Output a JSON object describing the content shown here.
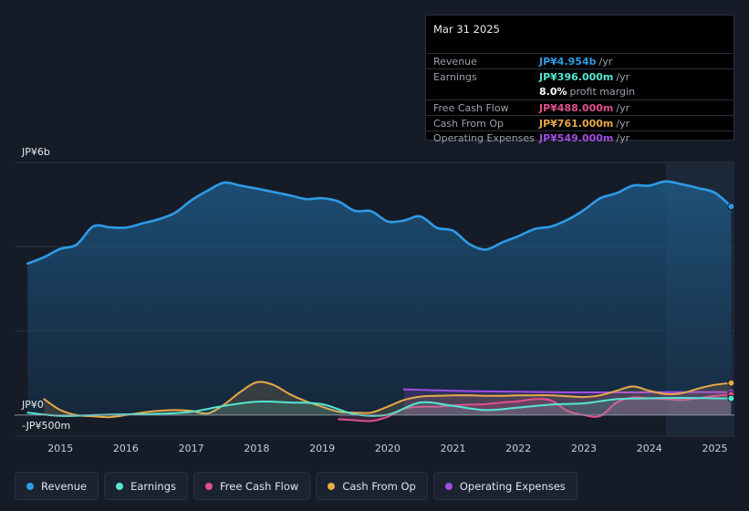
{
  "tooltip": {
    "date": "Mar 31 2025",
    "rows": [
      {
        "label": "Revenue",
        "value": "JP¥4.954b",
        "unit": "/yr",
        "color": "#2e9be6"
      },
      {
        "label": "Earnings",
        "value": "JP¥396.000m",
        "unit": "/yr",
        "color": "#55e6d2"
      },
      {
        "label": "",
        "value": "8.0%",
        "unit": "profit margin",
        "color": "#ffffff"
      },
      {
        "label": "Free Cash Flow",
        "value": "JP¥488.000m",
        "unit": "/yr",
        "color": "#e0508c"
      },
      {
        "label": "Cash From Op",
        "value": "JP¥761.000m",
        "unit": "/yr",
        "color": "#e8a94a"
      },
      {
        "label": "Operating Expenses",
        "value": "JP¥549.000m",
        "unit": "/yr",
        "color": "#a24ee6"
      }
    ]
  },
  "chart_data": {
    "type": "line",
    "title": "",
    "xlabel": "",
    "ylabel": "",
    "y_top_label": "JP¥6b",
    "y_zero_label": "JP¥0",
    "y_bottom_label": "-JP¥500m",
    "ylim": [
      -500,
      6000
    ],
    "xlim": [
      2014.3,
      2025.3
    ],
    "x_ticks": [
      "2015",
      "2016",
      "2017",
      "2018",
      "2019",
      "2020",
      "2021",
      "2022",
      "2023",
      "2024",
      "2025"
    ],
    "x_tick_values": [
      2015,
      2016,
      2017,
      2018,
      2019,
      2020,
      2021,
      2022,
      2023,
      2024,
      2025
    ],
    "highlight_range": [
      2024.25,
      2025.25
    ],
    "series": [
      {
        "name": "Revenue",
        "color": "#2e9be6",
        "x": [
          2014.5,
          2014.75,
          2015,
          2015.25,
          2015.5,
          2015.75,
          2016,
          2016.25,
          2016.5,
          2016.75,
          2017,
          2017.25,
          2017.5,
          2017.75,
          2018,
          2018.25,
          2018.5,
          2018.75,
          2019,
          2019.25,
          2019.5,
          2019.75,
          2020,
          2020.25,
          2020.5,
          2020.75,
          2021,
          2021.25,
          2021.5,
          2021.75,
          2022,
          2022.25,
          2022.5,
          2022.75,
          2023,
          2023.25,
          2023.5,
          2023.75,
          2024,
          2024.25,
          2024.5,
          2024.75,
          2025,
          2025.25
        ],
        "values": [
          3600,
          3750,
          3950,
          4050,
          4480,
          4460,
          4450,
          4550,
          4650,
          4800,
          5100,
          5330,
          5520,
          5450,
          5380,
          5300,
          5220,
          5130,
          5150,
          5070,
          4850,
          4840,
          4600,
          4620,
          4720,
          4450,
          4380,
          4060,
          3930,
          4100,
          4250,
          4420,
          4480,
          4640,
          4870,
          5150,
          5270,
          5450,
          5450,
          5550,
          5480,
          5390,
          5280,
          4954
        ]
      },
      {
        "name": "Earnings",
        "color": "#55e6d2",
        "x": [
          2014.5,
          2015,
          2015.5,
          2016,
          2016.5,
          2017,
          2017.5,
          2018,
          2018.5,
          2019,
          2019.5,
          2020,
          2020.5,
          2021,
          2021.5,
          2022,
          2022.5,
          2023,
          2023.5,
          2024,
          2024.5,
          2025,
          2025.25
        ],
        "values": [
          60,
          -20,
          0,
          20,
          30,
          80,
          220,
          320,
          300,
          260,
          20,
          10,
          300,
          220,
          120,
          180,
          250,
          280,
          380,
          400,
          410,
          400,
          396
        ]
      },
      {
        "name": "Free Cash Flow",
        "color": "#e0508c",
        "x": [
          2019.25,
          2019.5,
          2019.75,
          2020,
          2020.25,
          2020.5,
          2020.75,
          2021,
          2021.25,
          2021.5,
          2021.75,
          2022,
          2022.25,
          2022.5,
          2022.75,
          2023,
          2023.25,
          2023.5,
          2023.75,
          2024,
          2024.25,
          2024.5,
          2024.75,
          2025,
          2025.25
        ],
        "values": [
          -100,
          -120,
          -140,
          -40,
          150,
          200,
          200,
          230,
          250,
          260,
          300,
          330,
          380,
          350,
          100,
          0,
          -20,
          300,
          420,
          400,
          380,
          360,
          400,
          460,
          488
        ]
      },
      {
        "name": "Cash From Op",
        "color": "#e8a94a",
        "x": [
          2014.75,
          2015,
          2015.25,
          2015.5,
          2015.75,
          2016,
          2016.25,
          2016.5,
          2016.75,
          2017,
          2017.25,
          2017.5,
          2017.75,
          2018,
          2018.25,
          2018.5,
          2018.75,
          2019,
          2019.25,
          2019.5,
          2019.75,
          2020,
          2020.25,
          2020.5,
          2020.75,
          2021,
          2021.25,
          2021.5,
          2021.75,
          2022,
          2022.25,
          2022.5,
          2022.75,
          2023,
          2023.25,
          2023.5,
          2023.75,
          2024,
          2024.25,
          2024.5,
          2024.75,
          2025,
          2025.25
        ],
        "values": [
          380,
          120,
          0,
          -30,
          -50,
          0,
          60,
          100,
          120,
          100,
          40,
          250,
          550,
          780,
          720,
          500,
          330,
          200,
          80,
          60,
          60,
          200,
          360,
          440,
          460,
          470,
          470,
          460,
          460,
          470,
          470,
          470,
          450,
          430,
          470,
          580,
          680,
          580,
          500,
          520,
          630,
          720,
          761
        ]
      },
      {
        "name": "Operating Expenses",
        "color": "#a24ee6",
        "x": [
          2020.25,
          2020.75,
          2021.25,
          2021.75,
          2022.25,
          2022.75,
          2023.25,
          2023.75,
          2024.25,
          2024.75,
          2025.25
        ],
        "values": [
          610,
          590,
          570,
          560,
          550,
          540,
          540,
          540,
          545,
          548,
          549
        ]
      }
    ]
  },
  "legend": [
    {
      "label": "Revenue",
      "color": "#2e9be6"
    },
    {
      "label": "Earnings",
      "color": "#55e6d2"
    },
    {
      "label": "Free Cash Flow",
      "color": "#e0508c"
    },
    {
      "label": "Cash From Op",
      "color": "#e8a94a"
    },
    {
      "label": "Operating Expenses",
      "color": "#a24ee6"
    }
  ]
}
